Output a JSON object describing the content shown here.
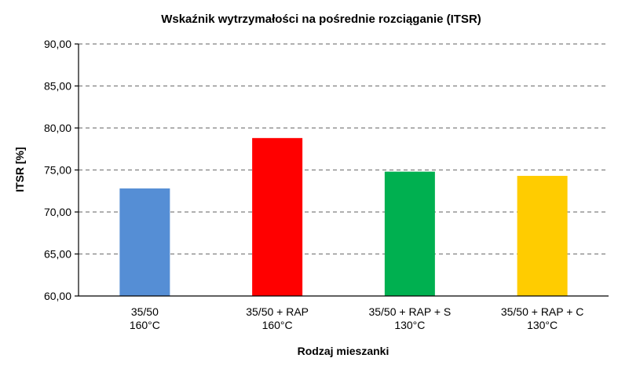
{
  "chart_data": {
    "type": "bar",
    "title": "Wskaźnik wytrzymałości na pośrednie rozciąganie (ITSR)",
    "xlabel": "Rodzaj mieszanki",
    "ylabel": "ITSR [%]",
    "ylim": [
      60,
      90
    ],
    "ytick_step": 5,
    "yticks": [
      "60,00",
      "65,00",
      "70,00",
      "75,00",
      "80,00",
      "85,00",
      "90,00"
    ],
    "grid": true,
    "categories": [
      [
        "35/50",
        "160°C"
      ],
      [
        "35/50 + RAP",
        "160°C"
      ],
      [
        "35/50 + RAP + S",
        "130°C"
      ],
      [
        "35/50 + RAP + C",
        "130°C"
      ]
    ],
    "values": [
      72.8,
      78.8,
      74.8,
      74.3
    ],
    "colors": [
      "#558ed5",
      "#ff0000",
      "#00b050",
      "#ffcc00"
    ]
  }
}
